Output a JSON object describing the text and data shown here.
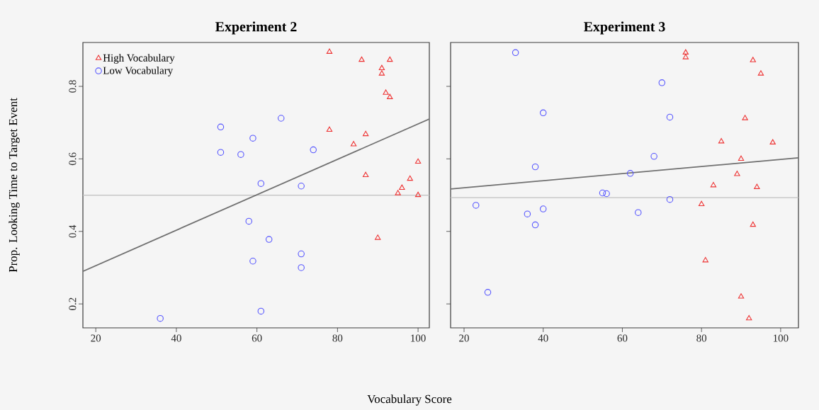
{
  "chart_data": [
    {
      "type": "scatter",
      "title": "Experiment 2",
      "xlabel": "Vocabulary Score",
      "ylabel": "Prop. Looking Time to Target Event",
      "xlim": [
        16.8,
        102.8
      ],
      "ylim": [
        0.134,
        0.921
      ],
      "xticks": [
        20,
        40,
        60,
        80,
        100
      ],
      "yticks": [
        0.2,
        0.4,
        0.6,
        0.8
      ],
      "legend": "top left",
      "series": [
        {
          "name": "High Vocabulary",
          "color": "#ee3333",
          "marker": "triangle",
          "x": [
            78,
            86,
            93,
            91,
            91,
            92,
            93,
            78,
            87,
            84,
            100,
            87,
            98,
            96,
            95,
            100,
            90
          ],
          "values": [
            0.895,
            0.873,
            0.873,
            0.85,
            0.835,
            0.782,
            0.77,
            0.68,
            0.668,
            0.64,
            0.592,
            0.555,
            0.545,
            0.52,
            0.505,
            0.5,
            0.382
          ]
        },
        {
          "name": "Low Vocabulary",
          "color": "#5555ff",
          "marker": "circle",
          "x": [
            51,
            66,
            59,
            51,
            56,
            74,
            61,
            71,
            58,
            63,
            71,
            59,
            71,
            61,
            36
          ],
          "values": [
            0.688,
            0.712,
            0.657,
            0.618,
            0.612,
            0.625,
            0.532,
            0.525,
            0.428,
            0.378,
            0.338,
            0.318,
            0.3,
            0.18,
            0.16
          ]
        },
        {
          "type": "line",
          "color": "#707070",
          "marker": "none",
          "x": [
            16.8,
            102.8
          ],
          "values": [
            0.29,
            0.71
          ]
        }
      ],
      "ref_lines": [
        {
          "axis": "y",
          "value": 0.5,
          "color": "#c0c0c0"
        }
      ]
    },
    {
      "type": "scatter",
      "title": "Experiment 3",
      "xlim": [
        16.6,
        104.5
      ],
      "ylim": [
        0.134,
        0.921
      ],
      "xticks": [
        20,
        40,
        60,
        80,
        100
      ],
      "yticks": [
        0.2,
        0.4,
        0.6,
        0.8
      ],
      "tick_labels": "x",
      "series": [
        {
          "color": "#ee3333",
          "marker": "triangle",
          "x": [
            76,
            76,
            93,
            95,
            91,
            85,
            98,
            90,
            89,
            83,
            94,
            80,
            93,
            81,
            90,
            92
          ],
          "values": [
            0.893,
            0.88,
            0.872,
            0.835,
            0.712,
            0.648,
            0.645,
            0.6,
            0.558,
            0.527,
            0.522,
            0.475,
            0.418,
            0.32,
            0.22,
            0.16
          ]
        },
        {
          "color": "#5555ff",
          "marker": "circle",
          "x": [
            33,
            70,
            40,
            72,
            68,
            38,
            62,
            55,
            56,
            72,
            23,
            40,
            36,
            64,
            38,
            26
          ],
          "values": [
            0.893,
            0.81,
            0.727,
            0.715,
            0.607,
            0.578,
            0.56,
            0.506,
            0.504,
            0.488,
            0.472,
            0.462,
            0.448,
            0.452,
            0.418,
            0.232
          ]
        },
        {
          "type": "line",
          "color": "#707070",
          "marker": "none",
          "x": [
            16.6,
            104.5
          ],
          "values": [
            0.517,
            0.603
          ]
        }
      ],
      "ref_lines": [
        {
          "axis": "y",
          "value": 0.493,
          "color": "#c0c0c0"
        }
      ]
    }
  ]
}
